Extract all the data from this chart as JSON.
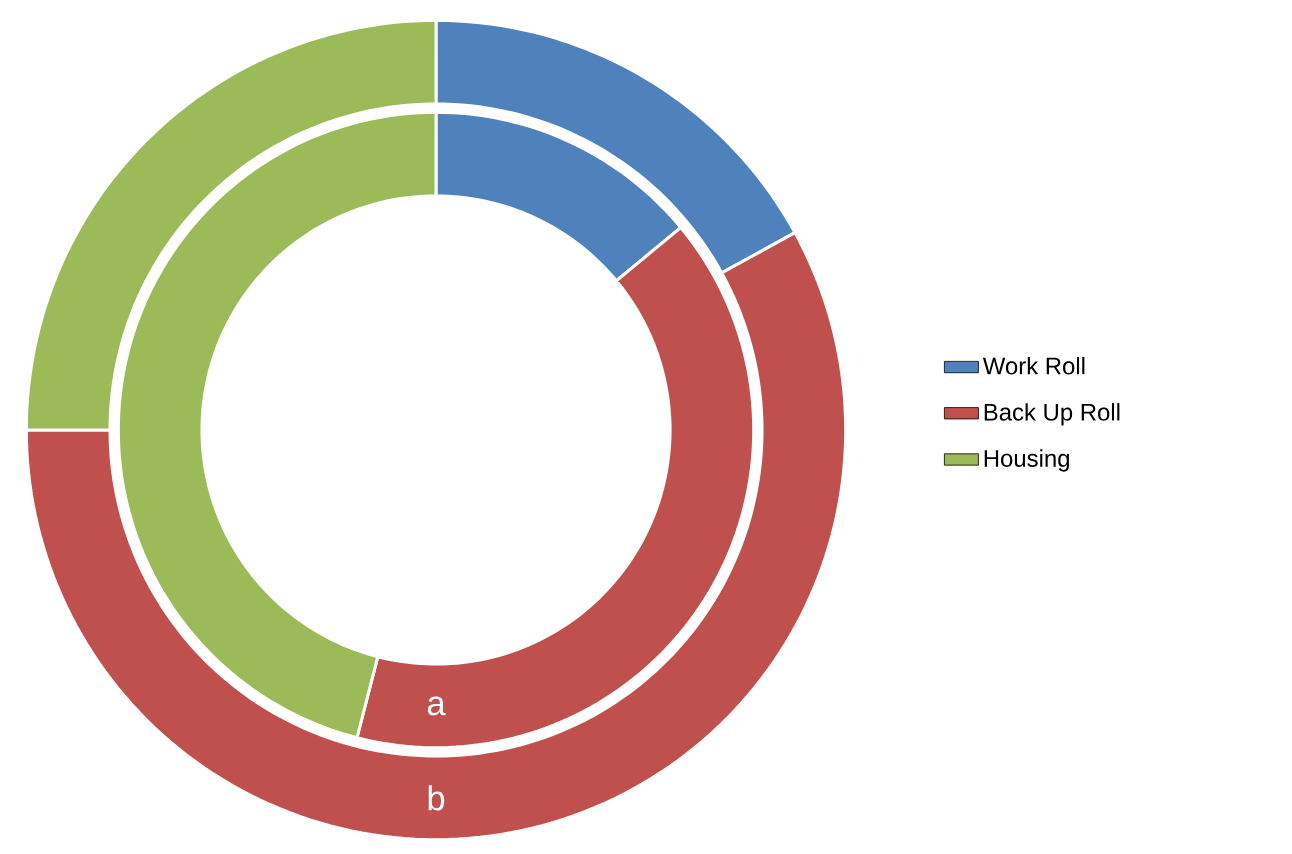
{
  "chart_data": {
    "type": "donut",
    "categories": [
      "Work Roll",
      "Back Up Roll",
      "Housing"
    ],
    "colors": [
      "#4f81bd",
      "#c0504d",
      "#9bbb59"
    ],
    "series": [
      {
        "name": "a",
        "values": [
          14,
          40,
          46
        ]
      },
      {
        "name": "b",
        "values": [
          17,
          58,
          25
        ]
      }
    ],
    "legend": "right"
  }
}
